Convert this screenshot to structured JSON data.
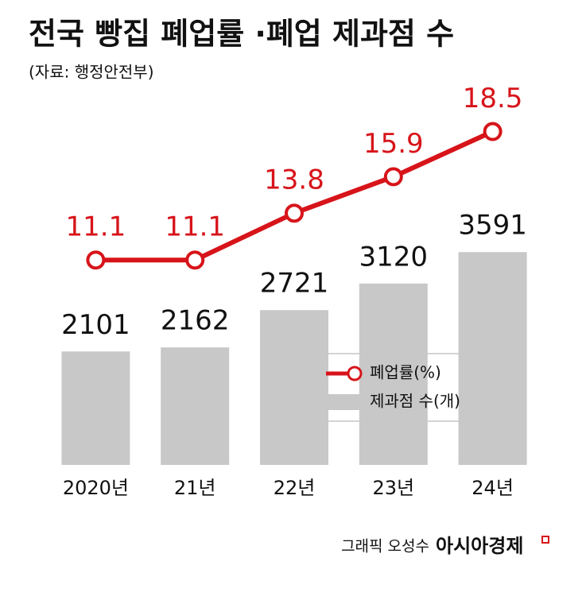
{
  "chart_data": {
    "type": "combo",
    "title": "전국 빵집 폐업률 ·폐업 제과점 수",
    "subtitle": "(자료: 행정안전부)",
    "categories": [
      "2020년",
      "21년",
      "22년",
      "23년",
      "24년"
    ],
    "series": [
      {
        "name": "폐업률(%)",
        "type": "line",
        "axis": "y2",
        "color": "#d7141a",
        "values": [
          11.1,
          11.1,
          13.8,
          15.9,
          18.5
        ]
      },
      {
        "name": "제과점 수(개)",
        "type": "bar",
        "color": "#c8c8c8",
        "values": [
          2101,
          2162,
          2721,
          3120,
          3591
        ]
      }
    ],
    "ylim": [
      400,
      6180
    ],
    "y2lim": [
      -0.7,
      21.5
    ],
    "credit": "그래픽 오성수",
    "brand": "아시아경제"
  }
}
